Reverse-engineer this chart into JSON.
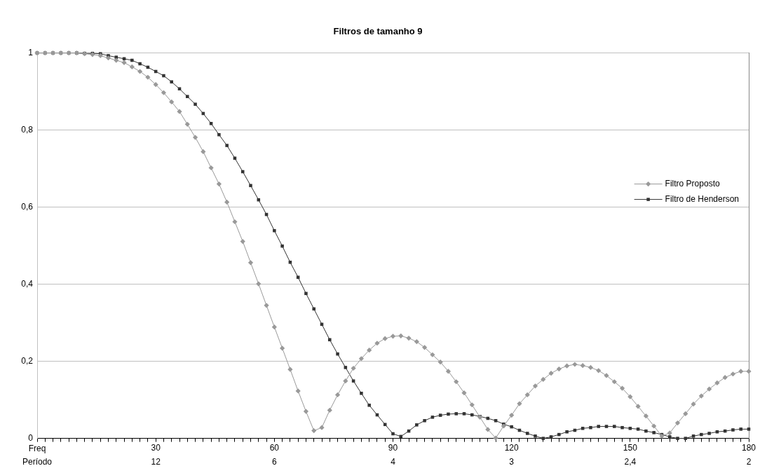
{
  "chart_data": {
    "type": "line",
    "title": "Filtros de tamanho 9",
    "x": [
      0,
      2,
      4,
      6,
      8,
      10,
      12,
      14,
      16,
      18,
      20,
      22,
      24,
      26,
      28,
      30,
      32,
      34,
      36,
      38,
      40,
      42,
      44,
      46,
      48,
      50,
      52,
      54,
      56,
      58,
      60,
      62,
      64,
      66,
      68,
      70,
      72,
      74,
      76,
      78,
      80,
      82,
      84,
      86,
      88,
      90,
      92,
      94,
      96,
      98,
      100,
      102,
      104,
      106,
      108,
      110,
      112,
      114,
      116,
      118,
      120,
      122,
      124,
      126,
      128,
      130,
      132,
      134,
      136,
      138,
      140,
      142,
      144,
      146,
      148,
      150,
      152,
      154,
      156,
      158,
      160,
      162,
      164,
      166,
      168,
      170,
      172,
      174,
      176,
      178,
      180
    ],
    "series": [
      {
        "name": "Filtro Proposto",
        "color": "#999999",
        "marker": "diamond",
        "values": [
          1,
          1,
          1,
          1,
          1,
          1,
          0.998,
          0.996,
          0.993,
          0.987,
          0.981,
          0.975,
          0.964,
          0.952,
          0.937,
          0.918,
          0.897,
          0.873,
          0.848,
          0.815,
          0.781,
          0.744,
          0.702,
          0.66,
          0.613,
          0.562,
          0.511,
          0.456,
          0.401,
          0.345,
          0.289,
          0.234,
          0.179,
          0.123,
          0.07,
          0.02,
          0.028,
          0.073,
          0.113,
          0.149,
          0.182,
          0.207,
          0.229,
          0.247,
          0.259,
          0.265,
          0.266,
          0.26,
          0.251,
          0.236,
          0.217,
          0.198,
          0.174,
          0.147,
          0.118,
          0.087,
          0.055,
          0.023,
          0.001,
          0.032,
          0.06,
          0.09,
          0.113,
          0.136,
          0.153,
          0.169,
          0.18,
          0.188,
          0.192,
          0.189,
          0.184,
          0.176,
          0.163,
          0.147,
          0.13,
          0.108,
          0.083,
          0.058,
          0.032,
          0.006,
          0.014,
          0.04,
          0.064,
          0.089,
          0.11,
          0.128,
          0.144,
          0.158,
          0.167,
          0.174,
          0.174
        ]
      },
      {
        "name": "Filtro de Henderson",
        "color": "#333333",
        "marker": "square",
        "values": [
          1,
          1,
          1,
          1,
          1,
          1,
          0.999,
          0.999,
          0.998,
          0.993,
          0.989,
          0.985,
          0.981,
          0.972,
          0.963,
          0.952,
          0.941,
          0.925,
          0.907,
          0.887,
          0.867,
          0.843,
          0.817,
          0.788,
          0.76,
          0.727,
          0.692,
          0.656,
          0.619,
          0.581,
          0.539,
          0.499,
          0.457,
          0.418,
          0.376,
          0.336,
          0.296,
          0.256,
          0.219,
          0.184,
          0.149,
          0.117,
          0.086,
          0.061,
          0.036,
          0.012,
          0.005,
          0.019,
          0.035,
          0.046,
          0.055,
          0.06,
          0.063,
          0.064,
          0.064,
          0.061,
          0.057,
          0.052,
          0.046,
          0.037,
          0.03,
          0.021,
          0.013,
          0.006,
          0,
          0.004,
          0.01,
          0.017,
          0.021,
          0.026,
          0.028,
          0.031,
          0.031,
          0.031,
          0.028,
          0.026,
          0.024,
          0.019,
          0.015,
          0.01,
          0.004,
          0,
          0,
          0.006,
          0.01,
          0.013,
          0.017,
          0.019,
          0.022,
          0.024,
          0.024
        ]
      }
    ],
    "xlim": [
      0,
      180
    ],
    "xlabel": "Freq",
    "annotations": [
      "Período",
      "12",
      "6",
      "4",
      "3",
      "2,4",
      "2"
    ],
    "xticks": [
      {
        "value": 0,
        "label": null
      },
      {
        "value": 2,
        "label": null
      },
      {
        "value": 4,
        "label": null
      },
      {
        "value": 6,
        "label": null
      },
      {
        "value": 8,
        "label": null
      },
      {
        "value": 10,
        "label": null
      },
      {
        "value": 12,
        "label": null
      },
      {
        "value": 14,
        "label": null
      },
      {
        "value": 16,
        "label": null
      },
      {
        "value": 18,
        "label": null
      },
      {
        "value": 20,
        "label": null
      },
      {
        "value": 22,
        "label": null
      },
      {
        "value": 24,
        "label": null
      },
      {
        "value": 26,
        "label": null
      },
      {
        "value": 28,
        "label": null
      },
      30,
      {
        "value": 32,
        "label": null
      },
      {
        "value": 34,
        "label": null
      },
      {
        "value": 36,
        "label": null
      },
      {
        "value": 38,
        "label": null
      },
      {
        "value": 40,
        "label": null
      },
      {
        "value": 42,
        "label": null
      },
      {
        "value": 44,
        "label": null
      },
      {
        "value": 46,
        "label": null
      },
      {
        "value": 48,
        "label": null
      },
      {
        "value": 50,
        "label": null
      },
      {
        "value": 52,
        "label": null
      },
      {
        "value": 54,
        "label": null
      },
      {
        "value": 56,
        "label": null
      },
      {
        "value": 58,
        "label": null
      },
      60,
      {
        "value": 62,
        "label": null
      },
      {
        "value": 64,
        "label": null
      },
      {
        "value": 66,
        "label": null
      },
      {
        "value": 68,
        "label": null
      },
      {
        "value": 70,
        "label": null
      },
      {
        "value": 72,
        "label": null
      },
      {
        "value": 74,
        "label": null
      },
      {
        "value": 76,
        "label": null
      },
      {
        "value": 78,
        "label": null
      },
      {
        "value": 80,
        "label": null
      },
      {
        "value": 82,
        "label": null
      },
      {
        "value": 84,
        "label": null
      },
      {
        "value": 86,
        "label": null
      },
      {
        "value": 88,
        "label": null
      },
      90,
      {
        "value": 92,
        "label": null
      },
      {
        "value": 94,
        "label": null
      },
      {
        "value": 96,
        "label": null
      },
      {
        "value": 98,
        "label": null
      },
      {
        "value": 100,
        "label": null
      },
      {
        "value": 102,
        "label": null
      },
      {
        "value": 104,
        "label": null
      },
      {
        "value": 106,
        "label": null
      },
      {
        "value": 108,
        "label": null
      },
      {
        "value": 110,
        "label": null
      },
      {
        "value": 112,
        "label": null
      },
      {
        "value": 114,
        "label": null
      },
      {
        "value": 116,
        "label": null
      },
      {
        "value": 118,
        "label": null
      },
      120,
      {
        "value": 122,
        "label": null
      },
      {
        "value": 124,
        "label": null
      },
      {
        "value": 126,
        "label": null
      },
      {
        "value": 128,
        "label": null
      },
      {
        "value": 130,
        "label": null
      },
      {
        "value": 132,
        "label": null
      },
      {
        "value": 134,
        "label": null
      },
      {
        "value": 136,
        "label": null
      },
      {
        "value": 138,
        "label": null
      },
      {
        "value": 140,
        "label": null
      },
      {
        "value": 142,
        "label": null
      },
      {
        "value": 144,
        "label": null
      },
      {
        "value": 146,
        "label": null
      },
      {
        "value": 148,
        "label": null
      },
      150,
      {
        "value": 152,
        "label": null
      },
      {
        "value": 154,
        "label": null
      },
      {
        "value": 156,
        "label": null
      },
      {
        "value": 158,
        "label": null
      },
      {
        "value": 160,
        "label": null
      },
      {
        "value": 162,
        "label": null
      },
      {
        "value": 164,
        "label": null
      },
      {
        "value": 166,
        "label": null
      },
      {
        "value": 168,
        "label": null
      },
      {
        "value": 170,
        "label": null
      },
      {
        "value": 172,
        "label": null
      },
      {
        "value": 174,
        "label": null
      },
      {
        "value": 176,
        "label": null
      },
      {
        "value": 178,
        "label": null
      },
      180
    ],
    "ylim": [
      0,
      1
    ],
    "yticks": [
      0,
      {
        "value": 0.2,
        "label": "0,2"
      },
      {
        "value": 0.4,
        "label": "0,4"
      },
      {
        "value": 0.6,
        "label": "0,6"
      },
      {
        "value": 0.8,
        "label": "0,8"
      },
      1
    ],
    "grid": "y",
    "legend": "right",
    "line_style": "solid"
  }
}
